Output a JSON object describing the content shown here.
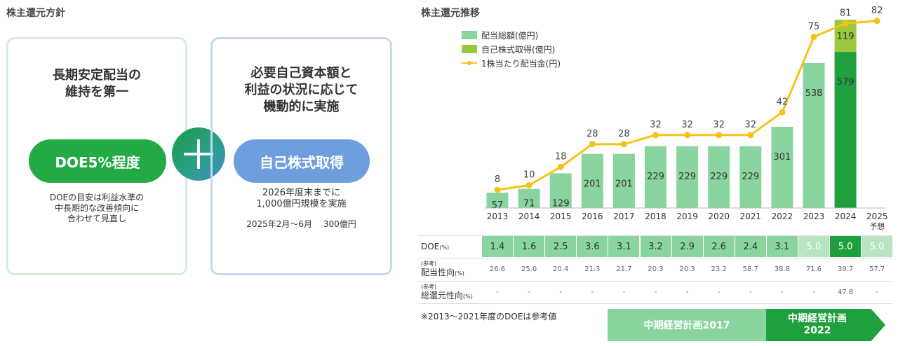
{
  "left": {
    "title": "株主還元方針",
    "box1": {
      "headline1": "長期安定配当の",
      "headline2": "維持を第一",
      "pill": "DOE5%程度",
      "note1": "DOEの目安は利益水準の",
      "note2": "中長期的な改善傾向に",
      "note3": "合わせて見直し"
    },
    "box2": {
      "headline1": "必要自己資本額と",
      "headline2": "利益の状況に応じて",
      "headline3": "機動的に実施",
      "pill": "自己株式取得",
      "note1": "2026年度末までに",
      "note2": "1,000億円規模を実施",
      "note3": "2025年2月～6月　 300億円"
    }
  },
  "right": {
    "title": "株主還元推移",
    "legend": {
      "dividend": "配当総額(億円)",
      "buyback": "自己株式取得(億円)",
      "dps": "1株当たり配当金(円)"
    },
    "table": {
      "doe_label": "DOE",
      "doe_unit": "(%)",
      "ref_tag": "(参考)",
      "payout_label": "配当性向",
      "payout_unit": "(%)",
      "total_label": "総還元性向",
      "total_unit": "(%)"
    },
    "footnote": "※2013～2021年度のDOEは参考値",
    "plan_2017": "中期経営計画2017",
    "plan_2022_line1": "中期経営計画",
    "plan_2022_line2": "2022"
  },
  "colors": {
    "dividend_bar": "#8ad4a0",
    "dividend_bar_2024": "#1fa03f",
    "buyback_bar": "#9ac73c",
    "dps_line": "#f5c318",
    "doe_cell": "#8ad4a0",
    "doe_cell_2024": "#1fa03f"
  },
  "chart_data": {
    "type": "bar",
    "categories": [
      "2013",
      "2014",
      "2015",
      "2016",
      "2017",
      "2018",
      "2019",
      "2020",
      "2021",
      "2022",
      "2023",
      "2024",
      "2025"
    ],
    "category_sublabels": [
      "",
      "",
      "",
      "",
      "",
      "",
      "",
      "",
      "",
      "",
      "",
      "",
      "予想"
    ],
    "series": [
      {
        "name": "配当総額(億円)",
        "type": "bar",
        "values": [
          57,
          71,
          129,
          201,
          201,
          229,
          229,
          229,
          229,
          301,
          538,
          579,
          null
        ]
      },
      {
        "name": "自己株式取得(億円)",
        "type": "bar-stacked",
        "values": [
          null,
          null,
          null,
          null,
          null,
          null,
          null,
          null,
          null,
          null,
          null,
          119,
          null
        ]
      },
      {
        "name": "1株当たり配当金(円)",
        "type": "line",
        "values": [
          8,
          10,
          18,
          28,
          28,
          32,
          32,
          32,
          32,
          42,
          75,
          81,
          82
        ]
      }
    ],
    "doe": [
      "1.4",
      "1.6",
      "2.5",
      "3.6",
      "3.1",
      "3.2",
      "2.9",
      "2.6",
      "2.4",
      "3.1",
      "5.0",
      "5.0",
      "5.0"
    ],
    "payout_ratio": [
      "26.6",
      "25.0",
      "20.4",
      "21.3",
      "21.7",
      "20.3",
      "20.3",
      "23.2",
      "58.7",
      "38.8",
      "71.6",
      "39.7",
      "57.7"
    ],
    "total_return_ratio": [
      "-",
      "-",
      "-",
      "-",
      "-",
      "-",
      "-",
      "-",
      "-",
      "-",
      "-",
      "47.8",
      "-"
    ]
  }
}
